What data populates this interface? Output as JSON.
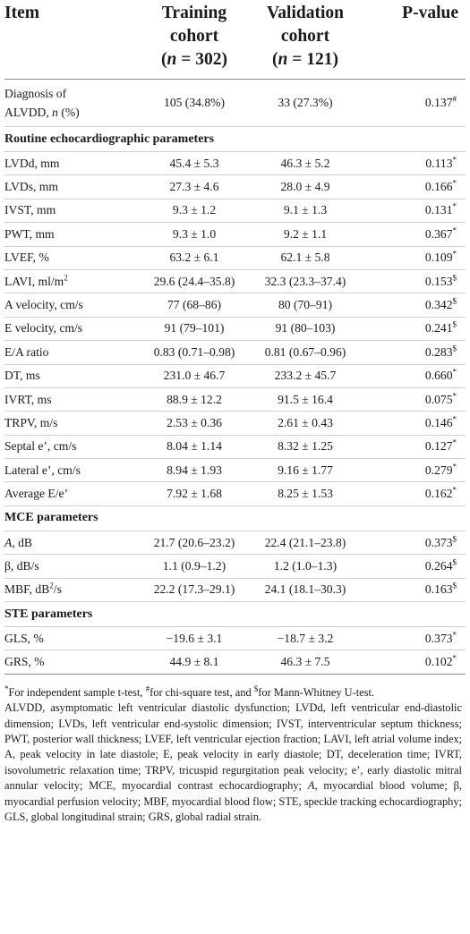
{
  "header": {
    "item": "Item",
    "training_line1": "Training",
    "training_line2": "cohort",
    "training_line3": "(n = 302)",
    "validation_line1": "Validation",
    "validation_line2": "cohort",
    "validation_line3": "(n = 121)",
    "pvalue": "P-value"
  },
  "diagnosis": {
    "label_line1": "Diagnosis of",
    "label_line2": "ALVDD, n (%)",
    "training": "105 (34.8%)",
    "validation": "33 (27.3%)",
    "p": "0.137",
    "mark": "#"
  },
  "sections": {
    "routine": "Routine echocardiographic parameters",
    "mce": "MCE parameters",
    "ste": "STE parameters"
  },
  "routine_rows": [
    {
      "label": "LVDd, mm",
      "training": "45.4 ± 5.3",
      "validation": "46.3 ± 5.2",
      "p": "0.113",
      "mark": "*"
    },
    {
      "label": "LVDs, mm",
      "training": "27.3 ± 4.6",
      "validation": "28.0 ± 4.9",
      "p": "0.166",
      "mark": "*"
    },
    {
      "label": "IVST, mm",
      "training": "9.3 ± 1.2",
      "validation": "9.1 ± 1.3",
      "p": "0.131",
      "mark": "*"
    },
    {
      "label": "PWT, mm",
      "training": "9.3 ± 1.0",
      "validation": "9.2 ± 1.1",
      "p": "0.367",
      "mark": "*"
    },
    {
      "label": "LVEF, %",
      "training": "63.2 ± 6.1",
      "validation": "62.1 ± 5.8",
      "p": "0.109",
      "mark": "*"
    },
    {
      "label": "LAVI, ml/m",
      "label_sup": "2",
      "training": "29.6 (24.4–35.8)",
      "validation": "32.3 (23.3–37.4)",
      "p": "0.153",
      "mark": "$"
    },
    {
      "label": "A velocity, cm/s",
      "training": "77 (68–86)",
      "validation": "80 (70–91)",
      "p": "0.342",
      "mark": "$"
    },
    {
      "label": "E velocity, cm/s",
      "training": "91 (79–101)",
      "validation": "91 (80–103)",
      "p": "0.241",
      "mark": "$"
    },
    {
      "label": "E/A ratio",
      "training": "0.83 (0.71–0.98)",
      "validation": "0.81 (0.67–0.96)",
      "p": "0.283",
      "mark": "$"
    },
    {
      "label": "DT, ms",
      "training": "231.0 ± 46.7",
      "validation": "233.2 ± 45.7",
      "p": "0.660",
      "mark": "*"
    },
    {
      "label": "IVRT, ms",
      "training": "88.9 ± 12.2",
      "validation": "91.5 ± 16.4",
      "p": "0.075",
      "mark": "*"
    },
    {
      "label": "TRPV, m/s",
      "training": "2.53 ± 0.36",
      "validation": "2.61 ± 0.43",
      "p": "0.146",
      "mark": "*"
    },
    {
      "label": "Septal e’, cm/s",
      "training": "8.04 ± 1.14",
      "validation": "8.32 ± 1.25",
      "p": "0.127",
      "mark": "*"
    },
    {
      "label": "Lateral e’, cm/s",
      "training": "8.94 ± 1.93",
      "validation": "9.16 ± 1.77",
      "p": "0.279",
      "mark": "*"
    },
    {
      "label": "Average E/e’",
      "training": "7.92 ± 1.68",
      "validation": "8.25 ± 1.53",
      "p": "0.162",
      "mark": "*"
    }
  ],
  "mce_rows": [
    {
      "label": "A",
      "label_rest": ", dB",
      "training": "21.7 (20.6–23.2)",
      "validation": "22.4 (21.1–23.8)",
      "p": "0.373",
      "mark": "$"
    },
    {
      "label": "β, dB/s",
      "training": "1.1 (0.9–1.2)",
      "validation": "1.2 (1.0–1.3)",
      "p": "0.264",
      "mark": "$"
    },
    {
      "label": "MBF, dB",
      "label_sup": "2",
      "label_rest": "/s",
      "training": "22.2 (17.3–29.1)",
      "validation": "24.1 (18.1–30.3)",
      "p": "0.163",
      "mark": "$"
    }
  ],
  "ste_rows": [
    {
      "label": "GLS, %",
      "training": "−19.6 ± 3.1",
      "validation": "−18.7 ± 3.2",
      "p": "0.373",
      "mark": "*"
    },
    {
      "label": "GRS, %",
      "training": "44.9 ± 8.1",
      "validation": "46.3 ± 7.5",
      "p": "0.102",
      "mark": "*"
    }
  ],
  "footnote": {
    "tests": "For independent sample t-test, # for chi-square test, and $ for Mann-Whitney U-test.",
    "t1": "*",
    "t2": "For independent sample t-test, ",
    "t3": "#",
    "t4": "for chi-square test, and ",
    "t5": "$",
    "t6": "for Mann-Whitney U-test.",
    "abbrev_a": "ALVDD, asymptomatic left ventricular diastolic dysfunction; LVDd, left ventricular end-diastolic dimension; LVDs, left ventricular end-systolic dimension; IVST, interventricular septum thickness; PWT, posterior wall thickness; LVEF, left ventricular ejection fraction; LAVI, left atrial volume index; A, peak velocity in late diastole; E, peak velocity in early diastole; DT, deceleration time; IVRT, isovolumetric relaxation time; TRPV, tricuspid regurgitation peak velocity; e’, early diastolic mitral annular velocity; MCE, myocardial contrast echocardiography; ",
    "abbrev_A": "A",
    "abbrev_b": ", myocardial blood volume; β, myocardial perfusion velocity; MBF, myocardial blood flow; STE, speckle tracking echocardiography; GLS, global longitudinal strain; GRS, global radial strain."
  }
}
